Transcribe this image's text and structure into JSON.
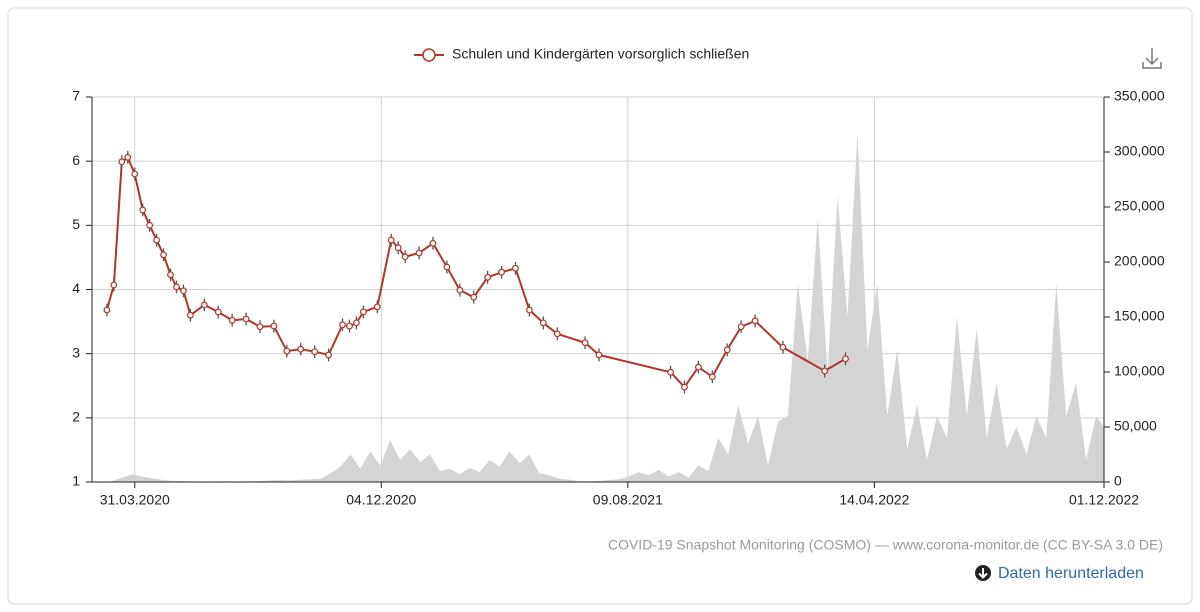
{
  "chart_data": {
    "type": "line",
    "legend": "top",
    "grid": true,
    "source": "COVID-19 Snapshot Monitoring (COSMO) — www.corona-monitor.de (CC BY-SA 3.0 DE)",
    "download_label": "Daten herunterladen",
    "xlim": [
      "17.02.2020",
      "01.12.2022"
    ],
    "xticks": [
      "31.03.2020",
      "04.12.2020",
      "09.08.2021",
      "14.04.2022",
      "01.12.2022"
    ],
    "ylim": [
      1,
      7
    ],
    "yticks": [
      1,
      2,
      3,
      4,
      5,
      6,
      7
    ],
    "y2lim": [
      0,
      350000
    ],
    "y2ticks": [
      0,
      {
        "value": 50000,
        "label": "50,000"
      },
      {
        "value": 100000,
        "label": "100,000"
      },
      {
        "value": 150000,
        "label": "150,000"
      },
      {
        "value": 200000,
        "label": "200,000"
      },
      {
        "value": 250000,
        "label": "250,000"
      },
      {
        "value": 300000,
        "label": "300,000"
      },
      {
        "value": 350000,
        "label": "350,000"
      }
    ],
    "series": [
      {
        "name": "Schulen und Kindergärten vorsorglich schließen",
        "color": "#b0362c",
        "axis": "y",
        "x": [
          "03.03.2020",
          "10.03.2020",
          "18.03.2020",
          "24.03.2020",
          "31.03.2020",
          "08.04.2020",
          "15.04.2020",
          "22.04.2020",
          "29.04.2020",
          "06.05.2020",
          "12.05.2020",
          "19.05.2020",
          "26.05.2020",
          "09.06.2020",
          "23.06.2020",
          "07.07.2020",
          "21.07.2020",
          "04.08.2020",
          "18.08.2020",
          "31.08.2020",
          "14.09.2020",
          "28.09.2020",
          "12.10.2020",
          "26.10.2020",
          "02.11.2020",
          "09.11.2020",
          "16.11.2020",
          "30.11.2020",
          "14.12.2020",
          "21.12.2020",
          "28.12.2020",
          "11.01.2021",
          "25.01.2021",
          "08.02.2021",
          "21.02.2021",
          "07.03.2021",
          "21.03.2021",
          "04.04.2021",
          "18.04.2021",
          "02.05.2021",
          "16.05.2021",
          "30.05.2021",
          "27.06.2021",
          "11.07.2021",
          "21.09.2021",
          "05.10.2021",
          "19.10.2021",
          "02.11.2021",
          "17.11.2021",
          "01.12.2021",
          "15.12.2021",
          "12.01.2022",
          "23.02.2022",
          "16.03.2022"
        ],
        "values": [
          3.68,
          4.07,
          5.99,
          6.06,
          5.8,
          5.24,
          5.0,
          4.77,
          4.54,
          4.23,
          4.04,
          3.98,
          3.6,
          3.76,
          3.65,
          3.52,
          3.54,
          3.42,
          3.43,
          3.04,
          3.07,
          3.03,
          2.98,
          3.45,
          3.43,
          3.48,
          3.65,
          3.73,
          4.77,
          4.65,
          4.51,
          4.57,
          4.72,
          4.35,
          3.99,
          3.88,
          4.19,
          4.27,
          4.33,
          3.68,
          3.48,
          3.31,
          3.17,
          2.98,
          2.71,
          2.48,
          2.79,
          2.64,
          3.06,
          3.42,
          3.51,
          3.1,
          2.73,
          2.92
        ],
        "errors": [
          0.1,
          0.1,
          0.1,
          0.1,
          0.1,
          0.1,
          0.1,
          0.1,
          0.1,
          0.1,
          0.1,
          0.1,
          0.1,
          0.1,
          0.1,
          0.1,
          0.1,
          0.1,
          0.1,
          0.1,
          0.1,
          0.1,
          0.1,
          0.1,
          0.1,
          0.1,
          0.1,
          0.1,
          0.1,
          0.1,
          0.1,
          0.1,
          0.1,
          0.1,
          0.1,
          0.1,
          0.1,
          0.1,
          0.1,
          0.1,
          0.1,
          0.1,
          0.1,
          0.1,
          0.1,
          0.1,
          0.1,
          0.1,
          0.1,
          0.1,
          0.1,
          0.1,
          0.1,
          0.1
        ]
      },
      {
        "color": "#d4d4d4",
        "axis": "y2",
        "type": "area",
        "x": [
          "17.02.2020",
          "27.02.2020",
          "08.03.2020",
          "18.03.2020",
          "28.03.2020",
          "07.04.2020",
          "17.04.2020",
          "27.04.2020",
          "07.05.2020",
          "17.05.2020",
          "27.05.2020",
          "06.06.2020",
          "16.06.2020",
          "26.06.2020",
          "06.07.2020",
          "16.07.2020",
          "26.07.2020",
          "05.08.2020",
          "15.08.2020",
          "25.08.2020",
          "04.09.2020",
          "14.09.2020",
          "24.09.2020",
          "04.10.2020",
          "14.10.2020",
          "24.10.2020",
          "03.11.2020",
          "13.11.2020",
          "23.11.2020",
          "03.12.2020",
          "13.12.2020",
          "23.12.2020",
          "02.01.2021",
          "12.01.2021",
          "22.01.2021",
          "01.02.2021",
          "11.02.2021",
          "21.02.2021",
          "03.03.2021",
          "13.03.2021",
          "23.03.2021",
          "02.04.2021",
          "12.04.2021",
          "22.04.2021",
          "02.05.2021",
          "12.05.2021",
          "22.05.2021",
          "01.06.2021",
          "11.06.2021",
          "21.06.2021",
          "01.07.2021",
          "11.07.2021",
          "21.07.2021",
          "31.07.2021",
          "10.08.2021",
          "20.08.2021",
          "30.08.2021",
          "09.09.2021",
          "19.09.2021",
          "29.09.2021",
          "09.10.2021",
          "19.10.2021",
          "29.10.2021",
          "08.11.2021",
          "18.11.2021",
          "28.11.2021",
          "08.12.2021",
          "18.12.2021",
          "28.12.2021",
          "07.01.2022",
          "17.01.2022",
          "27.01.2022",
          "06.02.2022",
          "16.02.2022",
          "26.02.2022",
          "08.03.2022",
          "18.03.2022",
          "28.03.2022",
          "07.04.2022",
          "17.04.2022",
          "27.04.2022",
          "07.05.2022",
          "17.05.2022",
          "27.05.2022",
          "06.06.2022",
          "16.06.2022",
          "26.06.2022",
          "06.07.2022",
          "16.07.2022",
          "26.07.2022",
          "05.08.2022",
          "15.08.2022",
          "25.08.2022",
          "04.09.2022",
          "14.09.2022",
          "24.09.2022",
          "04.10.2022",
          "14.10.2022",
          "24.10.2022",
          "03.11.2022",
          "13.11.2022",
          "23.11.2022",
          "01.12.2022"
        ],
        "values": [
          0,
          100,
          800,
          4000,
          7000,
          5000,
          3500,
          2000,
          1200,
          800,
          600,
          400,
          500,
          600,
          400,
          500,
          700,
          900,
          1500,
          1800,
          1500,
          2000,
          2500,
          3000,
          8000,
          14000,
          25000,
          12000,
          28000,
          15000,
          38000,
          20000,
          30000,
          18000,
          25000,
          10000,
          12000,
          7000,
          13000,
          9000,
          20000,
          14000,
          28000,
          17000,
          25000,
          8000,
          6000,
          3000,
          2000,
          700,
          600,
          1000,
          1800,
          2500,
          5000,
          9000,
          6000,
          11000,
          5000,
          9000,
          4000,
          15000,
          10000,
          40000,
          25000,
          70000,
          35000,
          60000,
          15000,
          55000,
          60000,
          180000,
          110000,
          240000,
          100000,
          260000,
          150000,
          318000,
          120000,
          180000,
          60000,
          120000,
          30000,
          70000,
          20000,
          60000,
          40000,
          150000,
          60000,
          140000,
          40000,
          90000,
          30000,
          50000,
          25000,
          60000,
          40000,
          180000,
          60000,
          90000,
          20000,
          60000,
          50000
        ]
      }
    ]
  }
}
